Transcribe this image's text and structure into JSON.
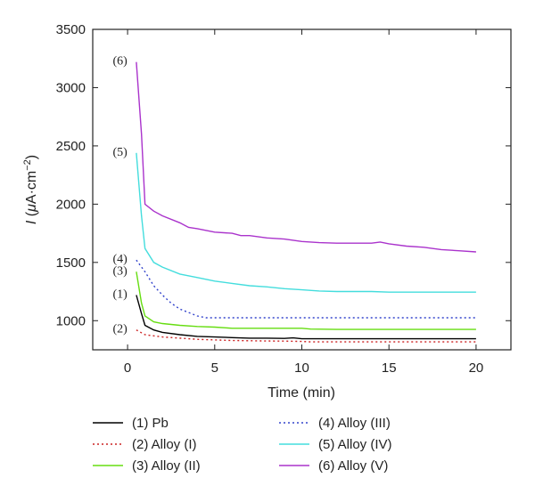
{
  "chart_data": {
    "type": "line",
    "xlabel": "Time (min)",
    "ylabel": "I (μA·cm⁻²)",
    "ylabel_parts": {
      "symbol": "I",
      "open": " (",
      "mu": "μ",
      "unit": "A·cm",
      "exp": "−2",
      "close": ")"
    },
    "xlim": [
      -2,
      22
    ],
    "ylim": [
      750,
      3500
    ],
    "xticks": [
      0,
      5,
      10,
      15,
      20
    ],
    "yticks": [
      1000,
      1500,
      2000,
      2500,
      3000,
      3500
    ],
    "grid": false,
    "legend_position": "bottom",
    "series": [
      {
        "name": "(1) Pb",
        "tag": "(1)",
        "color": "#000000",
        "dash": "solid",
        "points": [
          [
            0.5,
            1220
          ],
          [
            0.8,
            1060
          ],
          [
            1.0,
            960
          ],
          [
            1.5,
            920
          ],
          [
            2,
            900
          ],
          [
            3,
            880
          ],
          [
            4,
            865
          ],
          [
            5,
            860
          ],
          [
            6,
            855
          ],
          [
            7,
            850
          ],
          [
            8,
            850
          ],
          [
            9,
            848
          ],
          [
            9.5,
            852
          ],
          [
            10,
            845
          ],
          [
            11,
            845
          ],
          [
            12,
            845
          ],
          [
            14,
            845
          ],
          [
            16,
            845
          ],
          [
            18,
            845
          ],
          [
            20,
            845
          ]
        ]
      },
      {
        "name": "(2) Alloy (I)",
        "tag": "(2)",
        "color": "#cc2222",
        "dash": "dotted",
        "points": [
          [
            0.5,
            920
          ],
          [
            1.0,
            880
          ],
          [
            1.5,
            870
          ],
          [
            2,
            860
          ],
          [
            3,
            850
          ],
          [
            4,
            840
          ],
          [
            5,
            835
          ],
          [
            6,
            830
          ],
          [
            7,
            828
          ],
          [
            8,
            826
          ],
          [
            9,
            825
          ],
          [
            10,
            822
          ],
          [
            10.5,
            818
          ],
          [
            12,
            818
          ],
          [
            14,
            818
          ],
          [
            16,
            818
          ],
          [
            18,
            818
          ],
          [
            20,
            818
          ]
        ]
      },
      {
        "name": "(3) Alloy (II)",
        "tag": "(3)",
        "color": "#66dd11",
        "dash": "solid",
        "points": [
          [
            0.5,
            1420
          ],
          [
            0.8,
            1150
          ],
          [
            1.0,
            1040
          ],
          [
            1.5,
            990
          ],
          [
            2,
            975
          ],
          [
            3,
            960
          ],
          [
            4,
            950
          ],
          [
            5,
            945
          ],
          [
            6,
            935
          ],
          [
            7,
            935
          ],
          [
            8,
            935
          ],
          [
            9,
            935
          ],
          [
            10,
            935
          ],
          [
            10.5,
            928
          ],
          [
            12,
            925
          ],
          [
            14,
            925
          ],
          [
            16,
            925
          ],
          [
            18,
            925
          ],
          [
            20,
            925
          ]
        ]
      },
      {
        "name": "(4) Alloy (III)",
        "tag": "(4)",
        "color": "#3344cc",
        "dash": "dotted",
        "points": [
          [
            0.5,
            1520
          ],
          [
            1.0,
            1420
          ],
          [
            1.5,
            1300
          ],
          [
            2,
            1220
          ],
          [
            2.5,
            1150
          ],
          [
            3,
            1100
          ],
          [
            3.5,
            1070
          ],
          [
            4,
            1040
          ],
          [
            4.5,
            1025
          ],
          [
            5,
            1025
          ],
          [
            6,
            1025
          ],
          [
            8,
            1025
          ],
          [
            10,
            1025
          ],
          [
            12,
            1025
          ],
          [
            14,
            1025
          ],
          [
            16,
            1025
          ],
          [
            18,
            1025
          ],
          [
            20,
            1025
          ]
        ]
      },
      {
        "name": "(5) Alloy (IV)",
        "tag": "(5)",
        "color": "#44dddd",
        "dash": "solid",
        "points": [
          [
            0.5,
            2440
          ],
          [
            0.8,
            1900
          ],
          [
            1.0,
            1620
          ],
          [
            1.5,
            1500
          ],
          [
            2,
            1460
          ],
          [
            3,
            1400
          ],
          [
            4,
            1370
          ],
          [
            5,
            1340
          ],
          [
            6,
            1320
          ],
          [
            7,
            1300
          ],
          [
            8,
            1290
          ],
          [
            9,
            1275
          ],
          [
            10,
            1265
          ],
          [
            11,
            1255
          ],
          [
            12,
            1250
          ],
          [
            13,
            1250
          ],
          [
            14,
            1250
          ],
          [
            15,
            1245
          ],
          [
            16,
            1245
          ],
          [
            18,
            1245
          ],
          [
            20,
            1245
          ]
        ]
      },
      {
        "name": "(6) Alloy (V)",
        "tag": "(6)",
        "color": "#aa33cc",
        "dash": "solid",
        "points": [
          [
            0.5,
            3220
          ],
          [
            0.8,
            2600
          ],
          [
            1.0,
            2000
          ],
          [
            1.5,
            1940
          ],
          [
            2,
            1900
          ],
          [
            3,
            1840
          ],
          [
            3.5,
            1800
          ],
          [
            4,
            1790
          ],
          [
            5,
            1760
          ],
          [
            6,
            1750
          ],
          [
            6.5,
            1730
          ],
          [
            7,
            1730
          ],
          [
            8,
            1710
          ],
          [
            9,
            1700
          ],
          [
            10,
            1680
          ],
          [
            11,
            1670
          ],
          [
            12,
            1665
          ],
          [
            13,
            1665
          ],
          [
            14,
            1665
          ],
          [
            14.5,
            1675
          ],
          [
            15,
            1660
          ],
          [
            16,
            1640
          ],
          [
            17,
            1630
          ],
          [
            18,
            1610
          ],
          [
            19,
            1600
          ],
          [
            20,
            1590
          ]
        ]
      }
    ]
  }
}
